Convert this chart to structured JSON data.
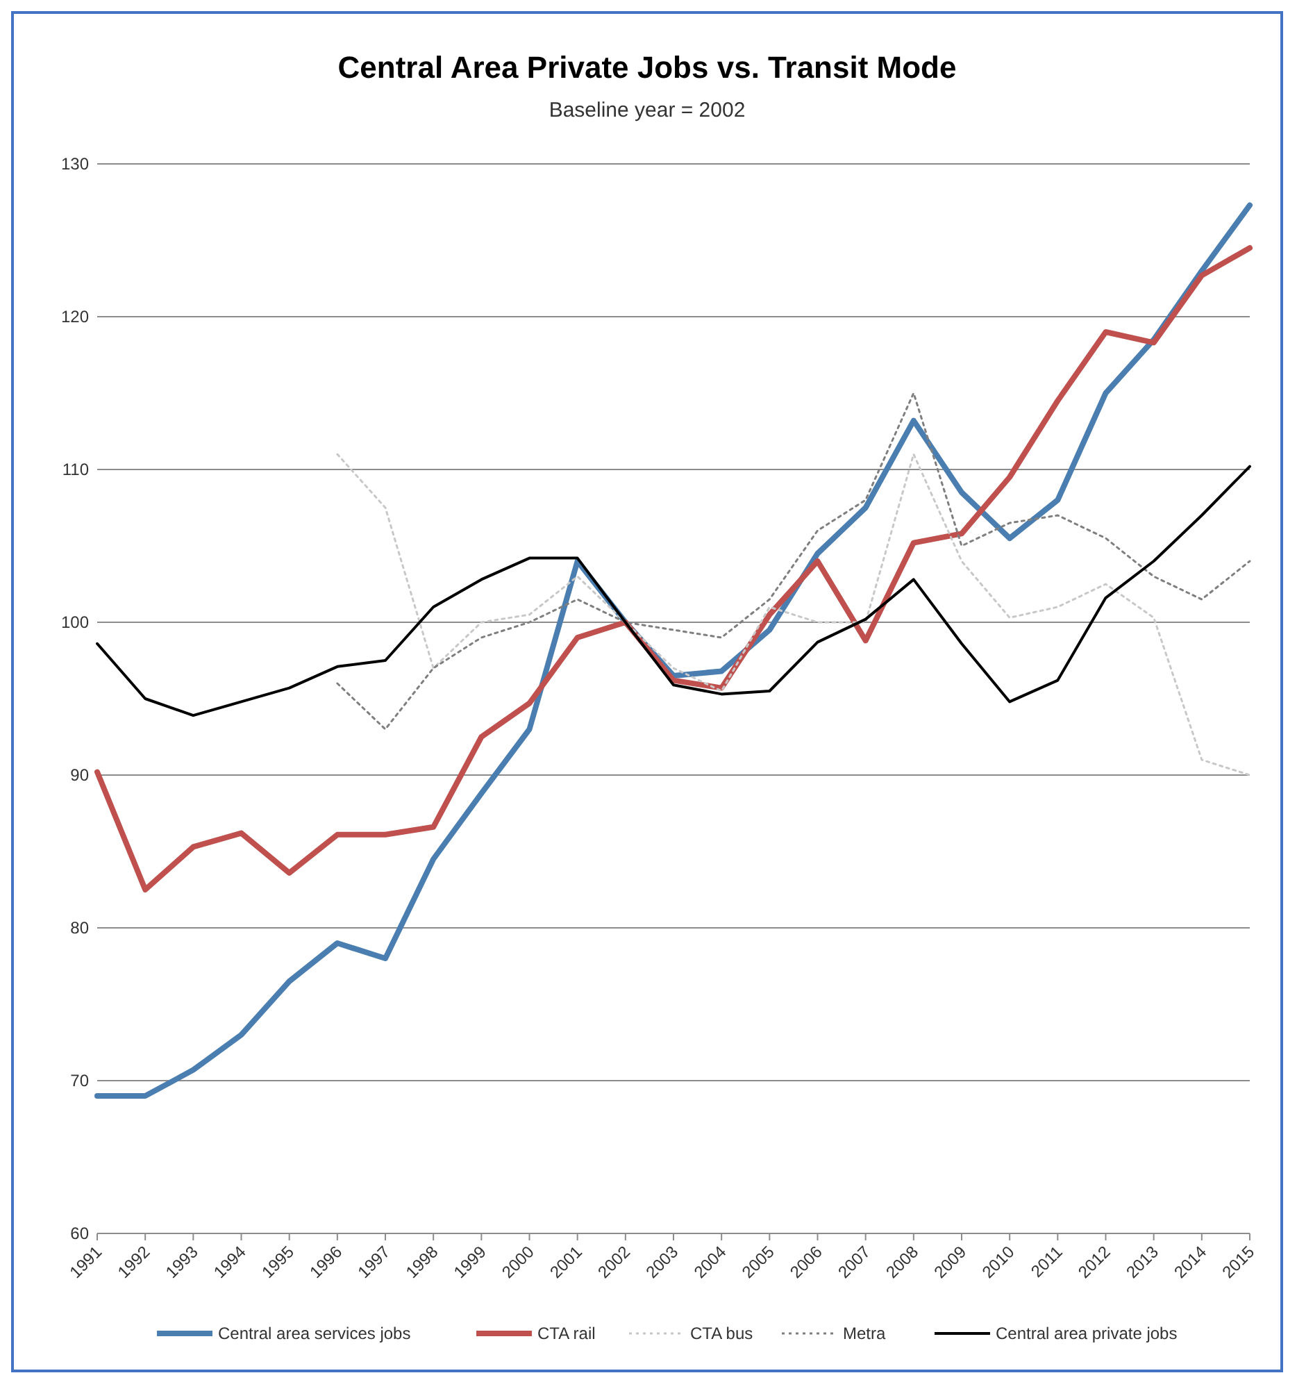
{
  "chart_data": {
    "type": "line",
    "title": "Central Area Private Jobs vs. Transit Mode",
    "subtitle": "Baseline year = 2002",
    "categories": [
      "1991",
      "1992",
      "1993",
      "1994",
      "1995",
      "1996",
      "1997",
      "1998",
      "1999",
      "2000",
      "2001",
      "2002",
      "2003",
      "2004",
      "2005",
      "2006",
      "2007",
      "2008",
      "2009",
      "2010",
      "2011",
      "2012",
      "2013",
      "2014",
      "2015"
    ],
    "series": [
      {
        "name": "Central area services jobs",
        "color": "#4a7eb0",
        "line_style": "solid",
        "values": [
          69,
          69,
          70.7,
          73,
          76.5,
          79,
          78,
          84.5,
          88.8,
          93,
          104,
          100,
          96.5,
          96.8,
          99.5,
          104.5,
          107.5,
          113.2,
          108.5,
          105.5,
          108,
          115,
          118.5,
          123,
          127.3
        ]
      },
      {
        "name": "CTA rail",
        "color": "#c0504d",
        "line_style": "solid",
        "values": [
          90.2,
          82.5,
          85.3,
          86.2,
          83.6,
          86.1,
          86.1,
          86.6,
          92.5,
          94.7,
          99,
          100,
          96.2,
          95.7,
          100.5,
          104,
          98.8,
          105.2,
          105.8,
          109.5,
          114.5,
          119,
          118.3,
          122.7,
          124.5
        ]
      },
      {
        "name": "CTA bus",
        "color": "#c8c8c8",
        "line_style": "dotted",
        "values": [
          null,
          null,
          null,
          null,
          null,
          111,
          107.5,
          97,
          100,
          100.5,
          103,
          100,
          97,
          95.5,
          101,
          100,
          100,
          111,
          104,
          100.3,
          101,
          102.5,
          100.3,
          91,
          90
        ]
      },
      {
        "name": "Metra",
        "color": "#7f7f7f",
        "line_style": "dotted",
        "values": [
          null,
          null,
          null,
          null,
          null,
          96,
          93,
          97,
          99,
          100,
          101.5,
          100,
          99.5,
          99,
          101.5,
          106,
          108,
          115,
          105,
          106.5,
          107,
          105.5,
          103,
          101.5,
          104
        ]
      },
      {
        "name": "Central area private jobs",
        "color": "#000000",
        "line_style": "solid",
        "values": [
          98.6,
          95,
          93.9,
          94.8,
          95.7,
          97.1,
          97.5,
          101,
          102.8,
          104.2,
          104.2,
          100,
          95.9,
          95.3,
          95.5,
          98.7,
          100.2,
          102.8,
          98.6,
          94.8,
          96.2,
          101.6,
          104,
          107,
          110.2
        ]
      }
    ],
    "ylim": [
      60,
      130
    ],
    "yticks": [
      60,
      70,
      80,
      90,
      100,
      110,
      120,
      130
    ],
    "grid": "y",
    "legend": "bottom"
  }
}
